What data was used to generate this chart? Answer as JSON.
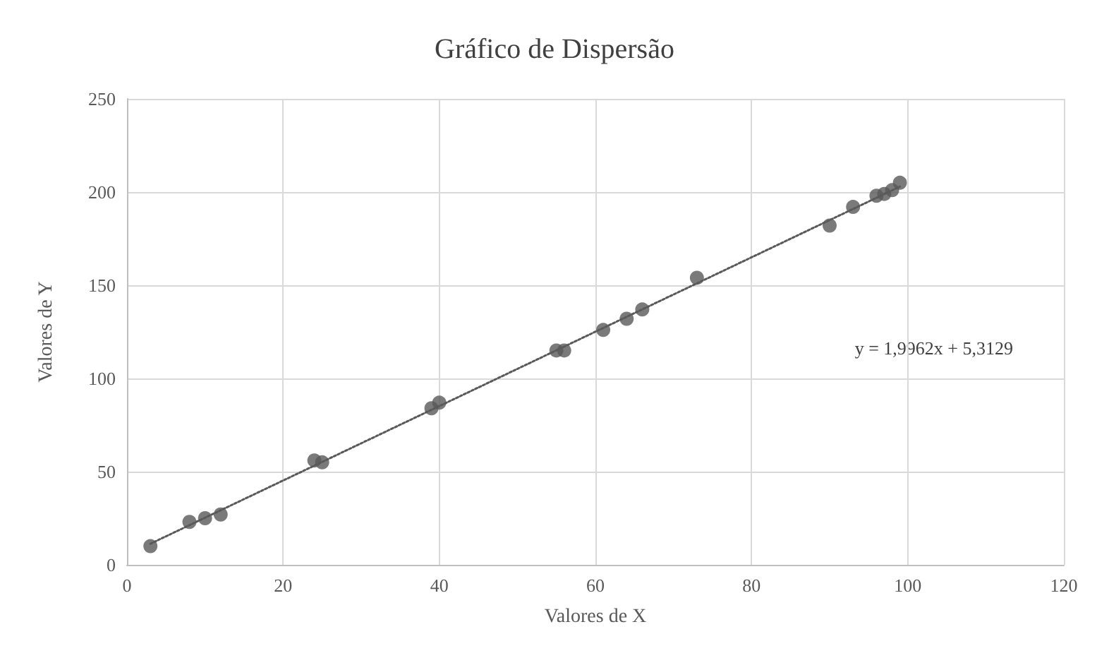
{
  "chart_data": {
    "type": "scatter",
    "title": "Gráfico de Dispersão",
    "xlabel": "Valores de X",
    "ylabel": "Valores de Y",
    "xlim": [
      0,
      120
    ],
    "xticks": [
      0,
      20,
      40,
      60,
      80,
      100,
      120
    ],
    "ylim": [
      0,
      250
    ],
    "yticks": [
      0,
      50,
      100,
      150,
      200,
      250
    ],
    "grid": true,
    "marker": "circle",
    "annotations": [
      "y = 1,9962x + 5,3129"
    ],
    "series": [
      {
        "color": "#595959",
        "x": [
          3,
          8,
          10,
          12,
          24,
          25,
          39,
          40,
          55,
          56,
          61,
          64,
          66,
          73,
          90,
          93,
          96,
          97,
          98,
          99
        ],
        "values": [
          10,
          23,
          25,
          27,
          56,
          55,
          84,
          87,
          115,
          115,
          126,
          132,
          137,
          154,
          182,
          192,
          198,
          199,
          201,
          205
        ]
      },
      {
        "type": "line",
        "color": "#595959",
        "line_style": "dotted",
        "marker": "none",
        "x": [
          3,
          99
        ],
        "values": [
          11.3,
          202.9
        ]
      }
    ]
  }
}
